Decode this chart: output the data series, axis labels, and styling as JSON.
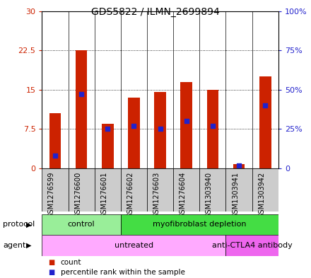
{
  "title": "GDS5822 / ILMN_2699894",
  "samples": [
    "GSM1276599",
    "GSM1276600",
    "GSM1276601",
    "GSM1276602",
    "GSM1276603",
    "GSM1276604",
    "GSM1303940",
    "GSM1303941",
    "GSM1303942"
  ],
  "counts": [
    10.5,
    22.5,
    8.5,
    13.5,
    14.5,
    16.5,
    15.0,
    0.8,
    17.5
  ],
  "percentile_ranks": [
    8.0,
    47.0,
    25.0,
    27.0,
    25.0,
    30.0,
    27.0,
    1.5,
    40.0
  ],
  "ylim_left": [
    0,
    30
  ],
  "ylim_right": [
    0,
    100
  ],
  "yticks_left": [
    0,
    7.5,
    15,
    22.5,
    30
  ],
  "yticks_right": [
    0,
    25,
    50,
    75,
    100
  ],
  "ytick_labels_left": [
    "0",
    "7.5",
    "15",
    "22.5",
    "30"
  ],
  "ytick_labels_right": [
    "0",
    "25%",
    "50%",
    "75%",
    "100%"
  ],
  "bar_color": "#cc2200",
  "dot_color": "#2222cc",
  "protocol_groups": [
    {
      "label": "control",
      "start": 0,
      "end": 3,
      "color": "#99ee99"
    },
    {
      "label": "myofibroblast depletion",
      "start": 3,
      "end": 9,
      "color": "#44dd44"
    }
  ],
  "agent_groups": [
    {
      "label": "untreated",
      "start": 0,
      "end": 7,
      "color": "#ffaaff"
    },
    {
      "label": "anti-CTLA4 antibody",
      "start": 7,
      "end": 9,
      "color": "#ee66ee"
    }
  ],
  "legend_count_color": "#cc2200",
  "legend_pct_color": "#2222cc",
  "legend_count_label": "count",
  "legend_pct_label": "percentile rank within the sample",
  "bar_width": 0.45,
  "left_tick_color": "#cc2200",
  "right_tick_color": "#2222cc",
  "xtick_bg_color": "#cccccc",
  "protocol_label": "protocol",
  "agent_label": "agent"
}
